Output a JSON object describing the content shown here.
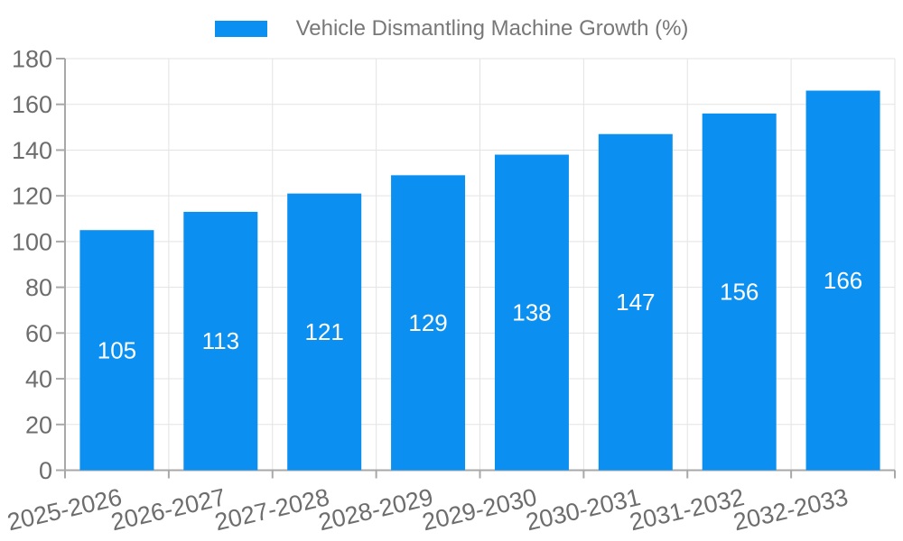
{
  "chart_data": {
    "type": "bar",
    "title": "Vehicle Dismantling Machine Growth (%)",
    "legend": {
      "position": "top-center",
      "items": [
        "Vehicle Dismantling Machine Growth (%)"
      ]
    },
    "categories": [
      "2025-2026",
      "2026-2027",
      "2027-2028",
      "2028-2029",
      "2029-2030",
      "2030-2031",
      "2031-2032",
      "2032-2033"
    ],
    "series": [
      {
        "name": "Vehicle Dismantling Machine Growth (%)",
        "values": [
          105,
          113,
          121,
          129,
          138,
          147,
          156,
          166
        ]
      }
    ],
    "xlabel": "",
    "ylabel": "",
    "ylim": [
      0,
      180
    ],
    "yticks": [
      0,
      20,
      40,
      60,
      80,
      100,
      120,
      140,
      160,
      180
    ],
    "x_tick_rotation_deg": -13,
    "grid": true,
    "bar_label_position": "inside-center",
    "colors": {
      "bar": "#0b90f2",
      "bar_label": "#ffffff",
      "grid_line": "#e3e3e3",
      "axis_line": "#a8a8a8",
      "tick_label": "#6d6d6d",
      "title": "#787878",
      "background": "#ffffff"
    }
  }
}
